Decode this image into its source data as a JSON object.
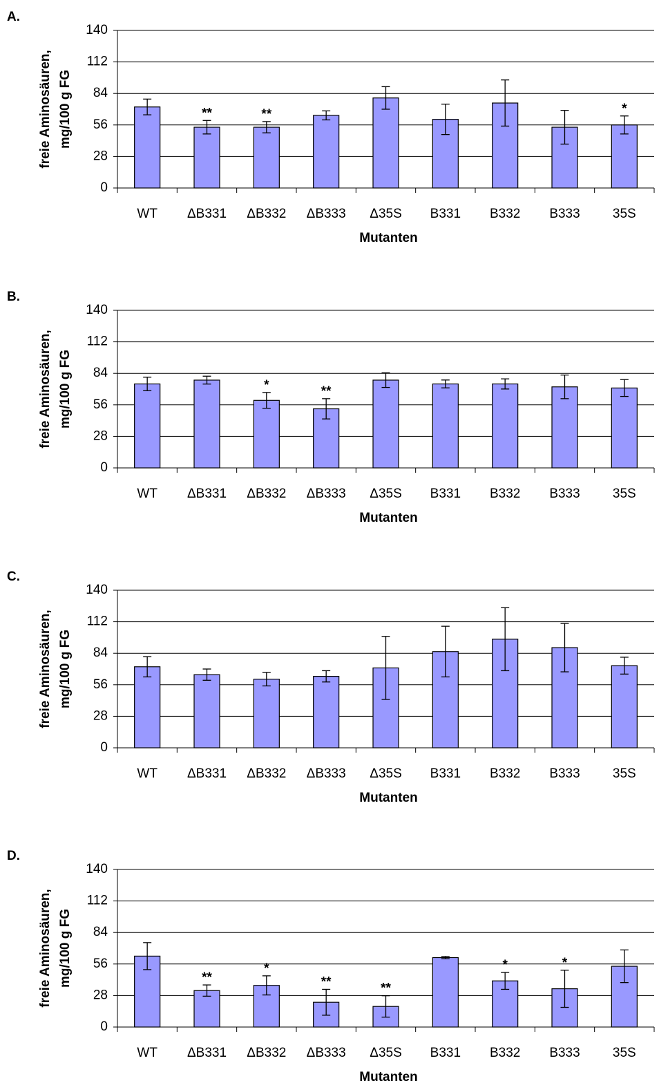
{
  "chart_data": [
    {
      "type": "bar",
      "panel_label": "A.",
      "y_label": [
        "freie  Aminosäuren,",
        "mg/100 g FG"
      ],
      "x_label": "Mutanten",
      "categories": [
        "WT",
        "ΔB331",
        "ΔB332",
        "ΔB333",
        "Δ35S",
        "B331",
        "B332",
        "B333",
        "35S"
      ],
      "values": [
        72,
        54,
        54,
        64.5,
        80,
        61,
        75.5,
        54,
        56
      ],
      "errors": [
        7,
        6,
        5,
        4,
        10,
        13.5,
        20.5,
        15,
        8
      ],
      "annotations": [
        null,
        "**",
        "**",
        null,
        null,
        null,
        null,
        null,
        "*"
      ],
      "color": "#9999ff",
      "ylim": [
        0,
        140
      ],
      "yticks": [
        0,
        28,
        56,
        84,
        112,
        140
      ],
      "grid": true
    },
    {
      "type": "bar",
      "panel_label": "B.",
      "y_label": [
        "freie  Aminosäuren,",
        "mg/100 g FG"
      ],
      "x_label": "Mutanten",
      "categories": [
        "WT",
        "ΔB331",
        "ΔB332",
        "ΔB333",
        "Δ35S",
        "B331",
        "B332",
        "B333",
        "35S"
      ],
      "values": [
        74.6,
        78,
        60,
        52.5,
        78,
        74.6,
        74.6,
        72,
        71
      ],
      "errors": [
        6,
        3.5,
        7,
        9,
        6.5,
        3.5,
        4.5,
        10.5,
        7.5
      ],
      "annotations": [
        null,
        null,
        "*",
        "**",
        null,
        null,
        null,
        null,
        null
      ],
      "color": "#9999ff",
      "ylim": [
        0,
        140
      ],
      "yticks": [
        0,
        28,
        56,
        84,
        112,
        140
      ],
      "grid": true
    },
    {
      "type": "bar",
      "panel_label": "C.",
      "y_label": [
        "freie  Aminosäuren,",
        "mg/100 g FG"
      ],
      "x_label": "Mutanten",
      "categories": [
        "WT",
        "ΔB331",
        "ΔB332",
        "ΔB333",
        "Δ35S",
        "B331",
        "B332",
        "B333",
        "35S"
      ],
      "values": [
        72,
        65,
        61,
        63.5,
        71,
        85.5,
        96.5,
        89,
        73
      ],
      "errors": [
        9,
        5,
        6,
        5,
        28,
        22.5,
        28,
        21.5,
        7.5
      ],
      "annotations": [
        null,
        null,
        null,
        null,
        null,
        null,
        null,
        null,
        null
      ],
      "color": "#9999ff",
      "ylim": [
        0,
        140
      ],
      "yticks": [
        0,
        28,
        56,
        84,
        112,
        140
      ],
      "grid": true
    },
    {
      "type": "bar",
      "panel_label": "D.",
      "y_label": [
        "freie  Aminosäuren,",
        "mg/100 g FG"
      ],
      "x_label": "Mutanten",
      "categories": [
        "WT",
        "ΔB331",
        "ΔB332",
        "ΔB333",
        "Δ35S",
        "B331",
        "B332",
        "B333",
        "35S"
      ],
      "values": [
        63,
        32.4,
        37,
        22,
        18.3,
        61.7,
        41,
        34,
        54
      ],
      "errors": [
        12,
        5,
        8.5,
        11.5,
        9.5,
        1,
        7.5,
        16.5,
        14.5
      ],
      "annotations": [
        null,
        "**",
        "*",
        "**",
        "**",
        null,
        "*",
        "*",
        null
      ],
      "color": "#9999ff",
      "ylim": [
        0,
        140
      ],
      "yticks": [
        0,
        28,
        56,
        84,
        112,
        140
      ],
      "grid": true
    }
  ]
}
